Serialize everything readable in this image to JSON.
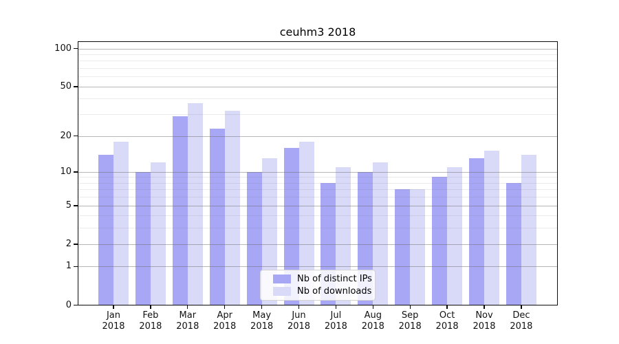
{
  "chart_data": {
    "type": "bar",
    "title": "ceuhm3 2018",
    "x_categories_month": [
      "Jan",
      "Feb",
      "Mar",
      "Apr",
      "May",
      "Jun",
      "Jul",
      "Aug",
      "Sep",
      "Oct",
      "Nov",
      "Dec"
    ],
    "x_categories_year": "2018",
    "series": [
      {
        "name": "Nb of distinct IPs",
        "color": "#a7a7f5",
        "values": [
          14,
          10,
          29,
          23,
          10,
          16,
          8,
          10,
          7,
          9,
          13,
          8
        ]
      },
      {
        "name": "Nb of downloads",
        "color": "#d9d9f8",
        "values": [
          18,
          12,
          37,
          32,
          13,
          18,
          11,
          12,
          7,
          11,
          15,
          14
        ]
      }
    ],
    "y_scale": "symlog log(1+x)",
    "ylim": [
      0,
      100
    ],
    "y_major_ticks": [
      "0",
      "1",
      "2",
      "5",
      "10",
      "20",
      "50",
      "100"
    ],
    "y_minor_gridlines": [
      3,
      4,
      6,
      7,
      8,
      9,
      30,
      40,
      60,
      70,
      80,
      90
    ],
    "grid": "on",
    "legend_position": "lower center"
  }
}
